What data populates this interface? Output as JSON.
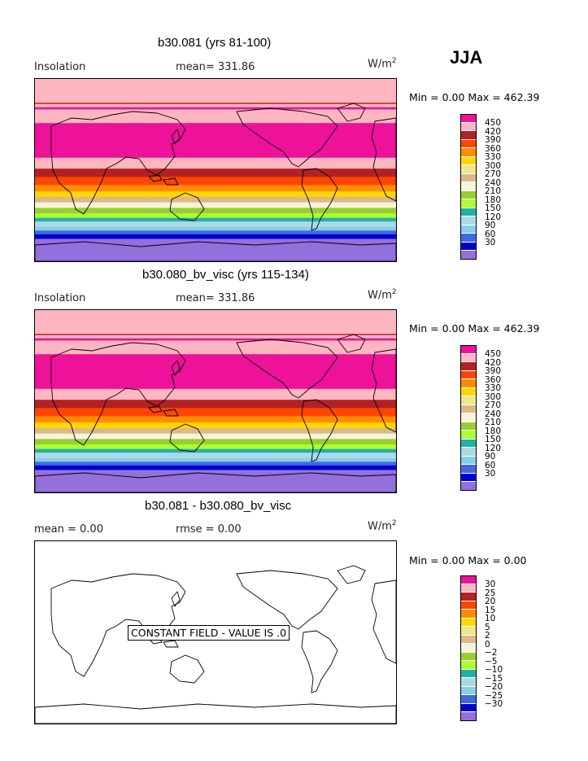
{
  "season": "JJA",
  "units_base": "W/m",
  "units_exp": "2",
  "panels": [
    {
      "title": "b30.081 (yrs 81-100)",
      "left_label": "Insolation",
      "mid_label": "mean= 331.86",
      "minmax": "Min =   0.00 Max = 462.39"
    },
    {
      "title": "b30.080_bv_visc (yrs 115-134)",
      "left_label": "Insolation",
      "mid_label": "mean= 331.86",
      "minmax": "Min =   0.00 Max = 462.39"
    },
    {
      "title": "b30.081 - b30.080_bv_visc",
      "left_label": "mean =   0.00",
      "mid_label": "rmse =   0.00",
      "minmax": "Min =   0.00 Max =   0.00",
      "annotation": "CONSTANT FIELD - VALUE IS .0"
    }
  ],
  "colorbar_colors": [
    "#ee1199",
    "#ffb6c1",
    "#b22222",
    "#ff4500",
    "#ff8c00",
    "#ffd700",
    "#f0e68c",
    "#deb887",
    "#f5f5dc",
    "#9acd32",
    "#adff2f",
    "#20b2aa",
    "#add8e6",
    "#87ceeb",
    "#4169e1",
    "#0000cd",
    "#9370db"
  ],
  "colorbar_labels_abs": [
    "450",
    "420",
    "390",
    "360",
    "330",
    "300",
    "270",
    "240",
    "210",
    "180",
    "150",
    "120",
    "90",
    "60",
    "30"
  ],
  "colorbar_labels_diff": [
    "30",
    "25",
    "20",
    "15",
    "10",
    "5",
    "2",
    "0",
    "−2",
    "−5",
    "−10",
    "−15",
    "−20",
    "−25",
    "−30"
  ],
  "insolation_bands": [
    {
      "color": "#ffb6c1",
      "h": 0.155
    },
    {
      "color": "#ee1199",
      "h": 0.012
    },
    {
      "color": "#ffb6c1",
      "h": 0.075
    },
    {
      "color": "#ee1199",
      "h": 0.19
    },
    {
      "color": "#ffb6c1",
      "h": 0.06
    },
    {
      "color": "#b22222",
      "h": 0.045
    },
    {
      "color": "#ff4500",
      "h": 0.045
    },
    {
      "color": "#ff8c00",
      "h": 0.035
    },
    {
      "color": "#ffd700",
      "h": 0.03
    },
    {
      "color": "#deb887",
      "h": 0.03
    },
    {
      "color": "#f5f5dc",
      "h": 0.03
    },
    {
      "color": "#9acd32",
      "h": 0.03
    },
    {
      "color": "#adff2f",
      "h": 0.025
    },
    {
      "color": "#20b2aa",
      "h": 0.02
    },
    {
      "color": "#add8e6",
      "h": 0.03
    },
    {
      "color": "#87ceeb",
      "h": 0.02
    },
    {
      "color": "#4169e1",
      "h": 0.02
    },
    {
      "color": "#0000cd",
      "h": 0.025
    },
    {
      "color": "#9370db",
      "h": 0.123
    }
  ]
}
